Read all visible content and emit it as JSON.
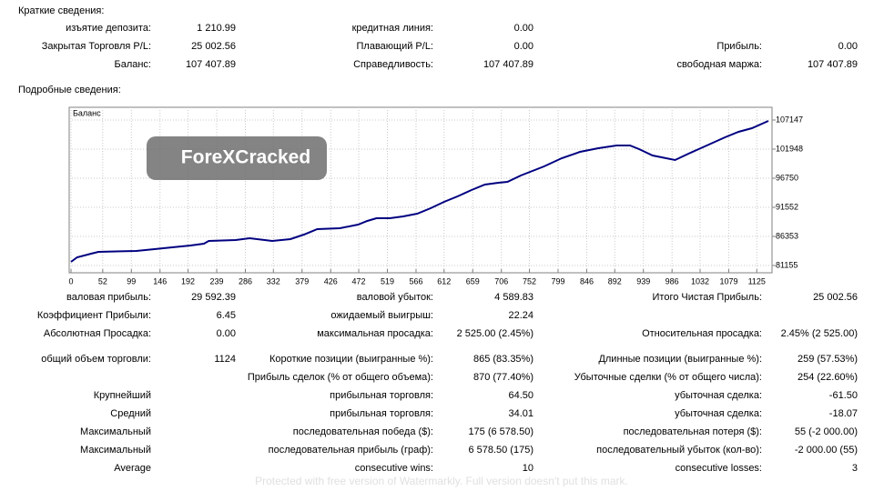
{
  "summary": {
    "title": "Краткие сведения:",
    "rows": [
      [
        "изъятие депозита:",
        "1 210.99",
        "кредитная линия:",
        "0.00",
        null,
        null
      ],
      [
        "Закрытая Торговля P/L:",
        "25 002.56",
        "Плавающий P/L:",
        "0.00",
        "Прибыль:",
        "0.00"
      ],
      [
        "Баланс:",
        "107 407.89",
        "Справедливость:",
        "107 407.89",
        "свободная маржа:",
        "107 407.89"
      ]
    ]
  },
  "details": {
    "title": "Подробные сведения:",
    "rows": [
      [
        "валовая прибыль:",
        "29 592.39",
        "валовой убыток:",
        "4 589.83",
        "Итого Чистая Прибыль:",
        "25 002.56"
      ],
      [
        "Коэффициент Прибыли:",
        "6.45",
        "ожидаемый выигрыш:",
        "22.24",
        null,
        null
      ],
      [
        "Абсолютная Просадка:",
        "0.00",
        "максимальная просадка:",
        "2 525.00 (2.45%)",
        "Относительная просадка:",
        "2.45% (2 525.00)"
      ],
      [
        "общий объем торговли:",
        "1124",
        "Короткие позиции (выигранные %):",
        "865 (83.35%)",
        "Длинные позиции (выигранные %):",
        "259 (57.53%)"
      ],
      [
        null,
        null,
        "Прибыль сделок (% от общего объема):",
        "870 (77.40%)",
        "Убыточные сделки (% от общего числа):",
        "254 (22.60%)"
      ],
      [
        "Крупнейший",
        null,
        "прибыльная торговля:",
        "64.50",
        "убыточная сделка:",
        "-61.50"
      ],
      [
        "Средний",
        null,
        "прибыльная торговля:",
        "34.01",
        "убыточная сделка:",
        "-18.07"
      ],
      [
        "Максимальный",
        null,
        "последовательная победа ($):",
        "175 (6 578.50)",
        "последовательная потеря ($):",
        "55 (-2 000.00)"
      ],
      [
        "Максимальный",
        null,
        "последовательная прибыль (граф):",
        "6 578.50 (175)",
        "последовательный убыток (кол-во):",
        "-2 000.00 (55)"
      ],
      [
        "Average",
        null,
        "consecutive wins:",
        "10",
        "consecutive losses:",
        "3"
      ]
    ]
  },
  "chart_data": {
    "type": "line",
    "label": "Баланс",
    "color": "#000080",
    "x": [
      0,
      10,
      33,
      45,
      107,
      137,
      166,
      196,
      218,
      226,
      270,
      293,
      330,
      360,
      382,
      404,
      441,
      471,
      486,
      501,
      523,
      545,
      568,
      590,
      612,
      634,
      657,
      679,
      701,
      716,
      738,
      776,
      805,
      835,
      865,
      895,
      917,
      932,
      954,
      991,
      1013,
      1043,
      1073,
      1095,
      1117,
      1144
    ],
    "values": [
      81805,
      82617,
      83267,
      83592,
      83754,
      84079,
      84404,
      84729,
      85054,
      85541,
      85704,
      86029,
      85541,
      85866,
      86678,
      87653,
      87815,
      88465,
      89115,
      89602,
      89602,
      89927,
      90415,
      91389,
      92527,
      93501,
      94638,
      95613,
      95938,
      96100,
      97238,
      98862,
      100324,
      101461,
      102111,
      102598,
      102598,
      101949,
      100811,
      99999,
      101136,
      102598,
      104060,
      105035,
      105685,
      106985
    ],
    "xlim": [
      -3,
      1150
    ],
    "ylim": [
      79855,
      109420
    ],
    "xticks": [
      0,
      52,
      99,
      146,
      192,
      239,
      286,
      332,
      379,
      426,
      472,
      519,
      566,
      612,
      659,
      706,
      752,
      799,
      846,
      892,
      939,
      986,
      1032,
      1079,
      1125
    ],
    "yticks": [
      81155,
      86353,
      91552,
      96750,
      101948,
      107147
    ],
    "grid": true
  },
  "watermarks": {
    "logo": "ForeXCracked",
    "notice": "Protected with free version of Watermarkly. Full version doesn't put this mark."
  }
}
